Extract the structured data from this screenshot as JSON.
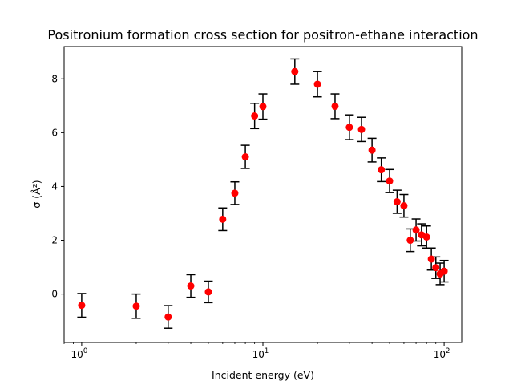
{
  "chart_data": {
    "type": "scatter",
    "title": "Positronium formation cross section for positron-ethane interaction",
    "xlabel": "Incident energy (eV)",
    "ylabel": "σ  (Å²)",
    "x_scale": "log",
    "xlim": [
      0.8,
      125
    ],
    "ylim": [
      -1.8,
      9.2
    ],
    "grid": false,
    "marker_color": "#ff0000",
    "errorbar_color": "#000000",
    "x_ticks": [
      {
        "value": 1,
        "base": "10",
        "exp": "0"
      },
      {
        "value": 10,
        "base": "10",
        "exp": "1"
      },
      {
        "value": 100,
        "base": "10",
        "exp": "2"
      }
    ],
    "y_ticks": [
      0,
      2,
      4,
      6,
      8
    ],
    "series": [
      {
        "points": [
          {
            "x": 1,
            "y": -0.42,
            "err": 0.44
          },
          {
            "x": 2,
            "y": -0.45,
            "err": 0.45
          },
          {
            "x": 3,
            "y": -0.85,
            "err": 0.42
          },
          {
            "x": 4,
            "y": 0.3,
            "err": 0.42
          },
          {
            "x": 5,
            "y": 0.08,
            "err": 0.4
          },
          {
            "x": 6,
            "y": 2.78,
            "err": 0.42
          },
          {
            "x": 7,
            "y": 3.75,
            "err": 0.42
          },
          {
            "x": 8,
            "y": 5.1,
            "err": 0.43
          },
          {
            "x": 9,
            "y": 6.62,
            "err": 0.47
          },
          {
            "x": 10,
            "y": 6.97,
            "err": 0.47
          },
          {
            "x": 15,
            "y": 8.27,
            "err": 0.47
          },
          {
            "x": 20,
            "y": 7.8,
            "err": 0.47
          },
          {
            "x": 25,
            "y": 6.98,
            "err": 0.46
          },
          {
            "x": 30,
            "y": 6.2,
            "err": 0.46
          },
          {
            "x": 35,
            "y": 6.12,
            "err": 0.45
          },
          {
            "x": 40,
            "y": 5.35,
            "err": 0.44
          },
          {
            "x": 45,
            "y": 4.62,
            "err": 0.44
          },
          {
            "x": 50,
            "y": 4.2,
            "err": 0.43
          },
          {
            "x": 55,
            "y": 3.43,
            "err": 0.43
          },
          {
            "x": 60,
            "y": 3.28,
            "err": 0.42
          },
          {
            "x": 65,
            "y": 2.0,
            "err": 0.42
          },
          {
            "x": 70,
            "y": 2.38,
            "err": 0.41
          },
          {
            "x": 75,
            "y": 2.2,
            "err": 0.41
          },
          {
            "x": 80,
            "y": 2.12,
            "err": 0.41
          },
          {
            "x": 85,
            "y": 1.3,
            "err": 0.41
          },
          {
            "x": 90,
            "y": 0.98,
            "err": 0.4
          },
          {
            "x": 95,
            "y": 0.75,
            "err": 0.4
          },
          {
            "x": 100,
            "y": 0.85,
            "err": 0.4
          }
        ]
      }
    ]
  }
}
